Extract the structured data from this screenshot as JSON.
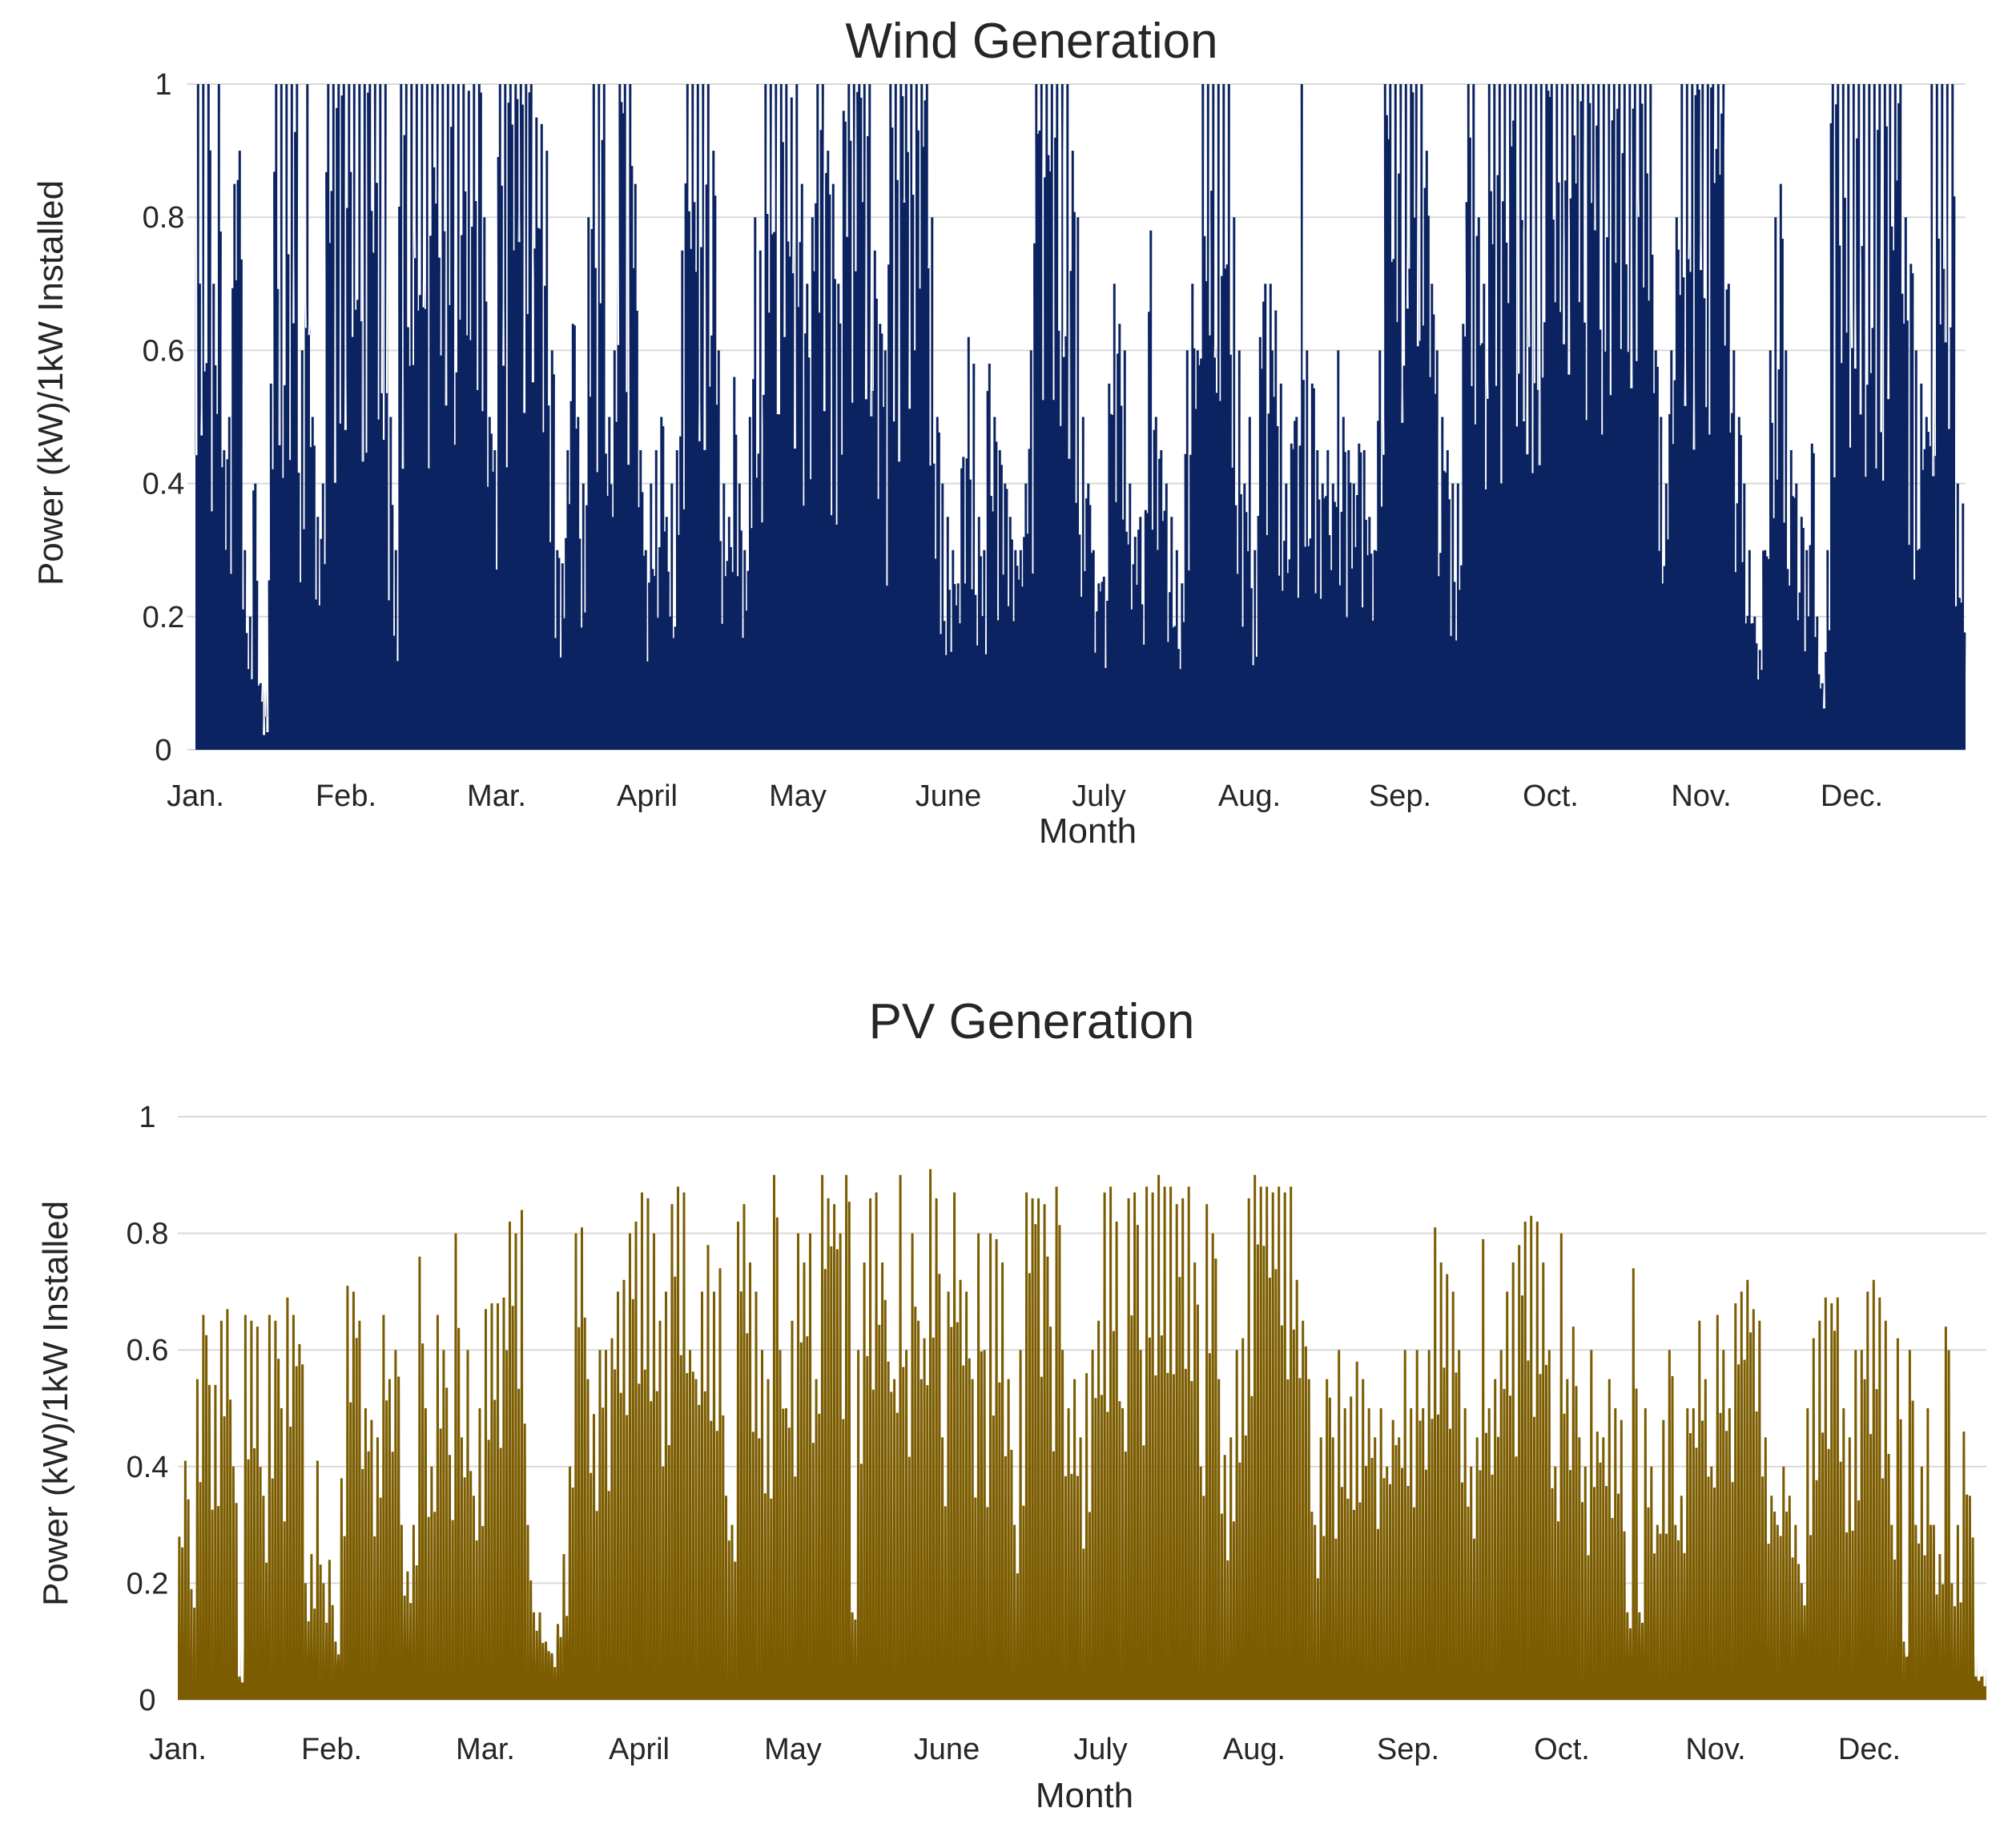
{
  "chart_data": [
    {
      "type": "area",
      "title": "Wind Generation",
      "xlabel": "Month",
      "ylabel": "Power (kW)/1kW Installed",
      "ylim": [
        0,
        1
      ],
      "yticks": [
        "0",
        "0.2",
        "0.4",
        "0.6",
        "0.8",
        "1"
      ],
      "categories": [
        "Jan.",
        "Feb.",
        "Mar.",
        "April",
        "May",
        "June",
        "July",
        "Aug.",
        "Sep.",
        "Oct.",
        "Nov.",
        "Dec."
      ],
      "color": "#0b2361",
      "grid": true,
      "daily_max": [
        1.0,
        1.0,
        1.0,
        0.7,
        1.0,
        0.45,
        0.5,
        0.85,
        0.9,
        0.3,
        0.2,
        0.4,
        0.1,
        0.05,
        0.55,
        1.0,
        1.0,
        1.0,
        1.0,
        1.0,
        0.6,
        1.0,
        0.5,
        0.35,
        0.4,
        1.0,
        1.0,
        1.0,
        1.0,
        1.0,
        1.0,
        1.0,
        1.0,
        1.0,
        1.0,
        1.0,
        1.0,
        0.5,
        0.3,
        1.0,
        1.0,
        1.0,
        1.0,
        1.0,
        1.0,
        1.0,
        1.0,
        1.0,
        1.0,
        1.0,
        1.0,
        1.0,
        0.99,
        1.0,
        1.0,
        0.8,
        0.5,
        0.45,
        1.0,
        1.0,
        1.0,
        1.0,
        1.0,
        1.0,
        1.0,
        0.95,
        0.94,
        0.9,
        0.6,
        0.3,
        0.28,
        0.45,
        0.64,
        0.5,
        0.4,
        0.8,
        1.0,
        1.0,
        1.0,
        0.5,
        0.6,
        1.0,
        1.0,
        1.0,
        0.85,
        0.45,
        0.3,
        0.4,
        0.45,
        0.5,
        0.35,
        0.4,
        0.45,
        0.75,
        1.0,
        1.0,
        1.0,
        1.0,
        1.0,
        0.9,
        0.6,
        0.4,
        0.35,
        0.56,
        0.4,
        0.3,
        0.5,
        0.8,
        0.75,
        1.0,
        1.0,
        1.0,
        1.0,
        1.0,
        0.98,
        1.0,
        0.85,
        0.7,
        0.8,
        1.0,
        1.0,
        0.9,
        0.85,
        0.7,
        0.96,
        1.0,
        1.0,
        1.0,
        1.0,
        1.0,
        0.75,
        0.64,
        0.6,
        1.0,
        1.0,
        1.0,
        1.0,
        1.0,
        1.0,
        1.0,
        1.0,
        0.8,
        0.5,
        0.4,
        0.35,
        0.3,
        0.25,
        0.44,
        0.62,
        0.58,
        0.35,
        0.3,
        0.58,
        0.5,
        0.45,
        0.4,
        0.35,
        0.3,
        0.3,
        0.4,
        0.6,
        1.0,
        1.0,
        1.0,
        1.0,
        1.0,
        1.0,
        1.0,
        0.9,
        0.8,
        0.5,
        0.4,
        0.3,
        0.25,
        0.26,
        0.55,
        0.7,
        0.64,
        0.6,
        0.4,
        0.32,
        0.35,
        0.36,
        0.78,
        0.5,
        0.45,
        0.4,
        0.35,
        0.3,
        0.25,
        0.6,
        0.7,
        0.6,
        1.0,
        1.0,
        1.0,
        1.0,
        1.0,
        1.0,
        0.8,
        0.6,
        0.4,
        0.5,
        0.3,
        0.62,
        0.7,
        0.7,
        0.66,
        0.55,
        0.4,
        0.46,
        0.5,
        1.0,
        0.6,
        0.55,
        0.45,
        0.4,
        0.45,
        0.4,
        0.6,
        0.5,
        0.45,
        0.4,
        0.46,
        0.45,
        0.35,
        0.3,
        0.6,
        1.0,
        1.0,
        1.0,
        1.0,
        1.0,
        1.0,
        1.0,
        1.0,
        0.9,
        0.7,
        0.6,
        0.5,
        0.45,
        0.4,
        0.4,
        0.64,
        1.0,
        1.0,
        0.8,
        0.7,
        1.0,
        1.0,
        1.0,
        1.0,
        1.0,
        1.0,
        1.0,
        1.0,
        1.0,
        1.0,
        1.0,
        1.0,
        1.0,
        1.0,
        1.0,
        1.0,
        1.0,
        1.0,
        1.0,
        1.0,
        1.0,
        1.0,
        1.0,
        1.0,
        1.0,
        1.0,
        1.0,
        1.0,
        1.0,
        1.0,
        1.0,
        1.0,
        0.6,
        0.5,
        0.4,
        0.6,
        0.8,
        1.0,
        1.0,
        1.0,
        1.0,
        1.0,
        1.0,
        1.0,
        1.0,
        1.0,
        0.7,
        0.6,
        0.5,
        0.4,
        0.3,
        0.2,
        0.15,
        0.3,
        0.6,
        0.8,
        0.85,
        0.6,
        0.45,
        0.4,
        0.35,
        0.3,
        0.46,
        0.2,
        0.1,
        0.3,
        1.0,
        1.0,
        1.0,
        1.0,
        1.0,
        1.0,
        1.0,
        1.0,
        1.0,
        1.0,
        1.0,
        1.0,
        1.0,
        1.0,
        0.8,
        0.73,
        0.6,
        0.55,
        0.5,
        1.0,
        1.0,
        1.0,
        1.0,
        1.0,
        0.4,
        0.37
      ]
    },
    {
      "type": "area",
      "title": "PV Generation",
      "xlabel": "Month",
      "ylabel": "Power (kW)/1kW Installed",
      "ylim": [
        0,
        1
      ],
      "yticks": [
        "0",
        "0.2",
        "0.4",
        "0.6",
        "0.8",
        "1"
      ],
      "categories": [
        "Jan.",
        "Feb.",
        "Mar.",
        "April",
        "May",
        "June",
        "July",
        "Aug.",
        "Sep.",
        "Oct.",
        "Nov.",
        "Dec."
      ],
      "color": "#7b5c00",
      "grid": true,
      "daily_max": [
        0.28,
        0.41,
        0.19,
        0.55,
        0.66,
        0.54,
        0.54,
        0.65,
        0.67,
        0.4,
        0.04,
        0.66,
        0.65,
        0.64,
        0.35,
        0.66,
        0.65,
        0.5,
        0.69,
        0.66,
        0.61,
        0.2,
        0.25,
        0.41,
        0.2,
        0.24,
        0.1,
        0.38,
        0.71,
        0.7,
        0.65,
        0.5,
        0.48,
        0.45,
        0.66,
        0.55,
        0.6,
        0.3,
        0.22,
        0.3,
        0.76,
        0.5,
        0.4,
        0.66,
        0.6,
        0.42,
        0.8,
        0.45,
        0.6,
        0.35,
        0.5,
        0.67,
        0.68,
        0.68,
        0.69,
        0.82,
        0.8,
        0.84,
        0.3,
        0.15,
        0.15,
        0.1,
        0.08,
        0.13,
        0.25,
        0.4,
        0.8,
        0.81,
        0.55,
        0.49,
        0.6,
        0.6,
        0.62,
        0.7,
        0.72,
        0.8,
        0.82,
        0.87,
        0.86,
        0.8,
        0.65,
        0.7,
        0.85,
        0.88,
        0.87,
        0.6,
        0.55,
        0.7,
        0.78,
        0.7,
        0.74,
        0.35,
        0.3,
        0.82,
        0.85,
        0.75,
        0.7,
        0.6,
        0.55,
        0.9,
        0.6,
        0.5,
        0.65,
        0.8,
        0.75,
        0.8,
        0.55,
        0.9,
        0.86,
        0.85,
        0.8,
        0.9,
        0.15,
        0.6,
        0.75,
        0.86,
        0.87,
        0.75,
        0.58,
        0.55,
        0.9,
        0.6,
        0.8,
        0.65,
        0.62,
        0.91,
        0.86,
        0.45,
        0.7,
        0.87,
        0.72,
        0.7,
        0.55,
        0.8,
        0.6,
        0.8,
        0.79,
        0.75,
        0.55,
        0.3,
        0.6,
        0.87,
        0.86,
        0.86,
        0.85,
        0.64,
        0.88,
        0.6,
        0.5,
        0.55,
        0.45,
        0.56,
        0.6,
        0.65,
        0.87,
        0.88,
        0.82,
        0.5,
        0.86,
        0.87,
        0.6,
        0.88,
        0.87,
        0.9,
        0.88,
        0.88,
        0.85,
        0.86,
        0.88,
        0.75,
        0.4,
        0.85,
        0.8,
        0.55,
        0.42,
        0.45,
        0.6,
        0.62,
        0.86,
        0.9,
        0.88,
        0.88,
        0.87,
        0.88,
        0.87,
        0.88,
        0.72,
        0.65,
        0.55,
        0.3,
        0.45,
        0.55,
        0.45,
        0.6,
        0.5,
        0.52,
        0.58,
        0.55,
        0.5,
        0.45,
        0.5,
        0.4,
        0.48,
        0.45,
        0.6,
        0.5,
        0.6,
        0.5,
        0.6,
        0.81,
        0.75,
        0.73,
        0.7,
        0.6,
        0.5,
        0.4,
        0.45,
        0.79,
        0.5,
        0.55,
        0.6,
        0.7,
        0.75,
        0.78,
        0.82,
        0.83,
        0.82,
        0.75,
        0.6,
        0.4,
        0.8,
        0.55,
        0.64,
        0.45,
        0.4,
        0.6,
        0.46,
        0.45,
        0.55,
        0.5,
        0.48,
        0.15,
        0.74,
        0.15,
        0.5,
        0.4,
        0.3,
        0.48,
        0.6,
        0.3,
        0.35,
        0.5,
        0.5,
        0.65,
        0.55,
        0.4,
        0.66,
        0.6,
        0.5,
        0.68,
        0.7,
        0.72,
        0.67,
        0.65,
        0.45,
        0.35,
        0.3,
        0.4,
        0.35,
        0.3,
        0.2,
        0.5,
        0.62,
        0.65,
        0.69,
        0.68,
        0.69,
        0.5,
        0.45,
        0.6,
        0.6,
        0.7,
        0.72,
        0.69,
        0.65,
        0.3,
        0.62,
        0.1,
        0.6,
        0.3,
        0.4,
        0.5,
        0.3,
        0.25,
        0.64,
        0.2,
        0.3,
        0.46,
        0.35,
        0.04,
        0.04
      ]
    }
  ]
}
